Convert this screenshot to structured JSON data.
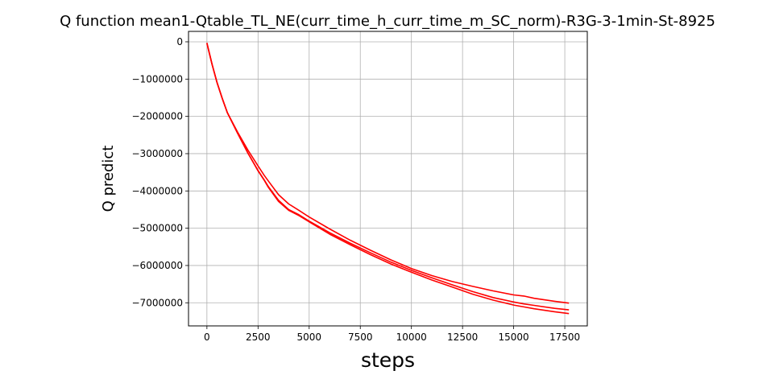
{
  "chart_data": {
    "type": "line",
    "title": "Q function mean1-Qtable_TL_NE(curr_time_h_curr_time_m_SC_norm)-R3G-3-1min-St-8925",
    "xlabel": "steps",
    "ylabel": "Q predict",
    "xlim": [
      -900,
      18600
    ],
    "ylim": [
      -7620000,
      280000
    ],
    "xticks": [
      0,
      2500,
      5000,
      7500,
      10000,
      12500,
      15000,
      17500
    ],
    "yticks": [
      0,
      -1000000,
      -2000000,
      -3000000,
      -4000000,
      -5000000,
      -6000000,
      -7000000
    ],
    "xtick_labels": [
      "0",
      "2500",
      "5000",
      "7500",
      "10000",
      "12500",
      "15000",
      "17500"
    ],
    "ytick_labels": [
      "0",
      "−1000000",
      "−2000000",
      "−3000000",
      "−4000000",
      "−5000000",
      "−6000000",
      "−7000000"
    ],
    "grid": true,
    "series_color": "#ff0000",
    "series": [
      {
        "x": [
          0,
          250,
          500,
          750,
          1000,
          1500,
          2000,
          2500,
          2800,
          3000,
          3500,
          4000,
          4500,
          5000,
          6000,
          7000,
          8000,
          9000,
          10000,
          11000,
          12000,
          13000,
          14000,
          15000,
          15500,
          16000,
          17000,
          17700
        ],
        "y": [
          -30000,
          -600000,
          -1100000,
          -1520000,
          -1900000,
          -2420000,
          -2900000,
          -3330000,
          -3580000,
          -3730000,
          -4100000,
          -4350000,
          -4520000,
          -4700000,
          -5020000,
          -5320000,
          -5590000,
          -5850000,
          -6080000,
          -6270000,
          -6430000,
          -6560000,
          -6680000,
          -6790000,
          -6820000,
          -6880000,
          -6960000,
          -7010000
        ]
      },
      {
        "x": [
          0,
          250,
          500,
          750,
          1000,
          1500,
          2000,
          2500,
          2800,
          3000,
          3500,
          4000,
          4500,
          5000,
          6000,
          7000,
          8000,
          9000,
          10000,
          11000,
          12000,
          13000,
          14000,
          15000,
          15500,
          16000,
          17000,
          17700
        ],
        "y": [
          -30000,
          -600000,
          -1100000,
          -1520000,
          -1900000,
          -2450000,
          -2980000,
          -3450000,
          -3700000,
          -3880000,
          -4250000,
          -4500000,
          -4640000,
          -4810000,
          -5120000,
          -5400000,
          -5660000,
          -5910000,
          -6130000,
          -6330000,
          -6520000,
          -6700000,
          -6860000,
          -6980000,
          -7030000,
          -7070000,
          -7150000,
          -7190000
        ]
      },
      {
        "x": [
          0,
          250,
          500,
          750,
          1000,
          1500,
          2000,
          2500,
          2800,
          3000,
          3500,
          4000,
          4500,
          5000,
          6000,
          7000,
          8000,
          9000,
          10000,
          11000,
          12000,
          13000,
          14000,
          15000,
          15500,
          16000,
          17000,
          17700
        ],
        "y": [
          -30000,
          -600000,
          -1100000,
          -1520000,
          -1900000,
          -2450000,
          -2980000,
          -3460000,
          -3710000,
          -3900000,
          -4280000,
          -4520000,
          -4660000,
          -4830000,
          -5160000,
          -5440000,
          -5710000,
          -5960000,
          -6180000,
          -6390000,
          -6580000,
          -6770000,
          -6930000,
          -7060000,
          -7110000,
          -7160000,
          -7240000,
          -7290000
        ]
      }
    ]
  }
}
